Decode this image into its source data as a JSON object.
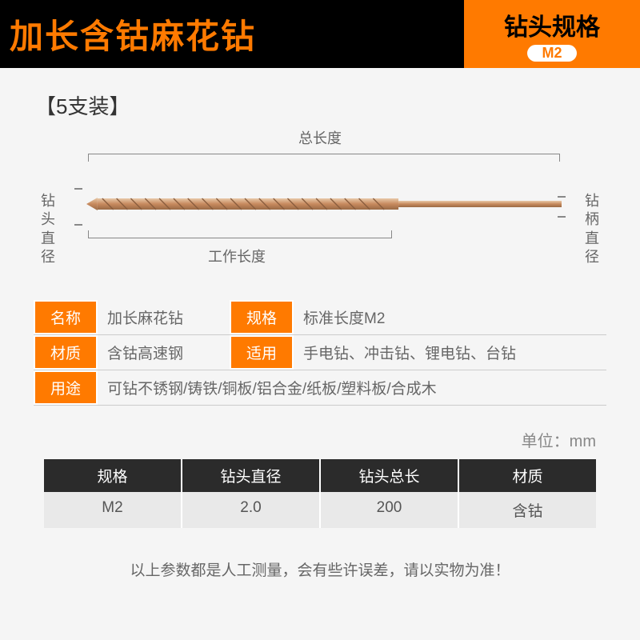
{
  "header": {
    "title": "加长含钴麻花钻",
    "spec_label": "钻头规格",
    "spec_badge": "M2"
  },
  "pack_label": "【5支装】",
  "diagram": {
    "tip_label": "钻头直径",
    "shank_label": "钻柄直径",
    "total_label": "总长度",
    "work_label": "工作长度",
    "drill_color": "#c78a5e",
    "drill_highlight": "#e8c9a8",
    "bracket_color": "#888888"
  },
  "info": {
    "rows": [
      {
        "cells": [
          {
            "label": "名称",
            "value": "加长麻花钻",
            "narrow": true
          },
          {
            "label": "规格",
            "value": "标准长度M2"
          }
        ]
      },
      {
        "cells": [
          {
            "label": "材质",
            "value": "含钴高速钢",
            "narrow": true
          },
          {
            "label": "适用",
            "value": "手电钻、冲击钻、锂电钻、台钻"
          }
        ]
      },
      {
        "cells": [
          {
            "label": "用途",
            "value": "可钻不锈钢/铸铁/铜板/铝合金/纸板/塑料板/合成木"
          }
        ]
      }
    ]
  },
  "unit_label": "单位：mm",
  "spec_table": {
    "columns": [
      "规格",
      "钻头直径",
      "钻头总长",
      "材质"
    ],
    "row": [
      "M2",
      "2.0",
      "200",
      "含钴"
    ]
  },
  "footer_note": "以上参数都是人工测量，会有些许误差，请以实物为准！",
  "colors": {
    "orange": "#ff7a00",
    "black": "#000000",
    "head_dark": "#2b2b2b",
    "row_grey": "#e9e9e9",
    "bg": "#f5f5f5"
  }
}
